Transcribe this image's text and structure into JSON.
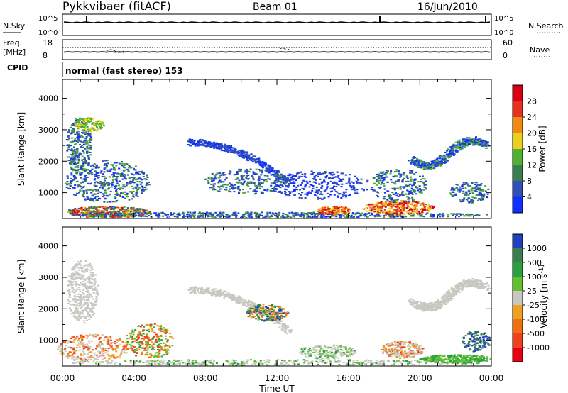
{
  "header": {
    "station": "Pykkvibaer (fitACF)",
    "beam": "Beam 01",
    "date": "16/Jun/2010"
  },
  "top_panels": {
    "nsky": {
      "label": "N.Sky",
      "ticks": [
        "10^5",
        "10^0"
      ]
    },
    "nsearch": {
      "label": "N.Search",
      "ticks": [
        "10^5",
        "10^0"
      ]
    },
    "freq": {
      "label_line1": "Freq.",
      "label_line2": "[MHz]",
      "ticks": [
        "18",
        "8"
      ]
    },
    "nave": {
      "label": "Nave",
      "ticks": [
        "60",
        "0"
      ]
    },
    "cpid": {
      "label": "CPID",
      "mode": "normal (fast stereo) 153"
    }
  },
  "chart_data": [
    {
      "type": "heatmap",
      "ylabel": "Slant Range [km]",
      "xlabel": "Time UT",
      "x_ticks": [
        "00:00",
        "04:00",
        "08:00",
        "12:00",
        "16:00",
        "20:00",
        "00:00"
      ],
      "y_ticks": [
        1000,
        2000,
        3000,
        4000
      ],
      "xlim_hours": [
        0,
        24
      ],
      "ylim_km": [
        180,
        4600
      ],
      "colorbar": {
        "label": "Power [dB]",
        "tick_labels": [
          "4",
          "8",
          "12",
          "16",
          "20",
          "24",
          "28"
        ],
        "colors": [
          "#1030ff",
          "#3050b8",
          "#3a7d4e",
          "#50b030",
          "#e8d020",
          "#f08a10",
          "#e83020",
          "#d80010"
        ]
      }
    },
    {
      "type": "heatmap",
      "ylabel": "Slant Range [km]",
      "xlabel": "Time UT",
      "x_ticks": [
        "00:00",
        "04:00",
        "08:00",
        "12:00",
        "16:00",
        "20:00",
        "00:00"
      ],
      "y_ticks": [
        1000,
        2000,
        3000,
        4000
      ],
      "xlim_hours": [
        0,
        24
      ],
      "ylim_km": [
        180,
        4600
      ],
      "colorbar": {
        "label": "Velocity [m s^-1]",
        "tick_labels": [
          "1000",
          "500",
          "100",
          "25",
          "-25",
          "-100",
          "-500",
          "-1000"
        ],
        "colors": [
          "#2040c0",
          "#3a7d4e",
          "#2aa040",
          "#60c030",
          "#c8c8c0",
          "#f0a020",
          "#f07010",
          "#f04020",
          "#e80010"
        ]
      }
    }
  ]
}
